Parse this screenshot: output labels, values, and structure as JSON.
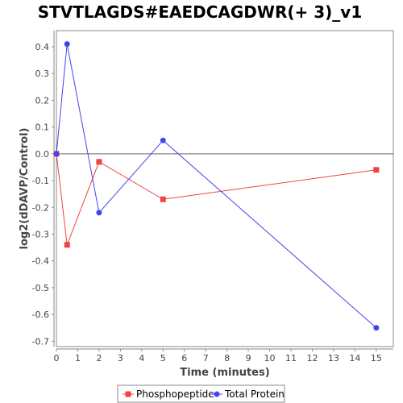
{
  "chart_data": {
    "type": "line",
    "title": "STVTLAGDS#EAEDCAGDWR(+ 3)_v1",
    "xlabel": "Time (minutes)",
    "ylabel": "log2(dDAVP/Control)",
    "xlim": [
      0,
      15.8
    ],
    "ylim": [
      -0.72,
      0.46
    ],
    "xticks": [
      0,
      1,
      2,
      3,
      4,
      5,
      6,
      7,
      8,
      9,
      10,
      11,
      12,
      13,
      14,
      15
    ],
    "yticks": [
      0.4,
      0.3,
      0.2,
      0.1,
      0.0,
      -0.1,
      -0.2,
      -0.3,
      -0.4,
      -0.5,
      -0.6,
      -0.7
    ],
    "xtick_labels": [
      "0",
      "1",
      "2",
      "3",
      "4",
      "5",
      "6",
      "7",
      "8",
      "9",
      "10",
      "11",
      "12",
      "13",
      "14",
      "15"
    ],
    "ytick_labels": [
      "0.4",
      "0.3",
      "0.2",
      "0.1",
      "0.0",
      "-0.1",
      "-0.2",
      "-0.3",
      "-0.4",
      "-0.5",
      "-0.6",
      "-0.7"
    ],
    "zero_line": true,
    "grid": false,
    "legend_position": "bottom",
    "series": [
      {
        "name": "Phosphopeptide",
        "color": "#ee4444",
        "marker": "square",
        "x": [
          0,
          0.5,
          2,
          5,
          15
        ],
        "y": [
          0.0,
          -0.34,
          -0.03,
          -0.17,
          -0.06
        ]
      },
      {
        "name": "Total Protein",
        "color": "#4444ee",
        "marker": "circle",
        "x": [
          0,
          0.5,
          2,
          5,
          15
        ],
        "y": [
          0.0,
          0.41,
          -0.22,
          0.05,
          -0.65
        ]
      }
    ]
  }
}
